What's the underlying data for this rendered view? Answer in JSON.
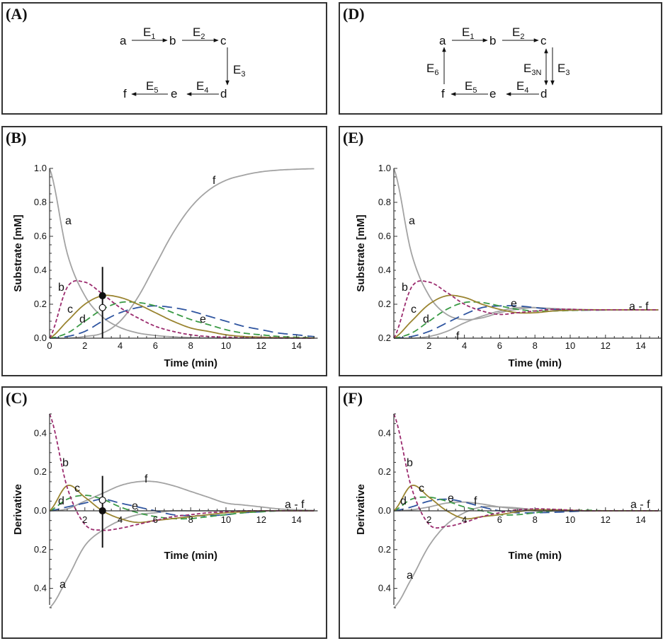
{
  "panels": {
    "A": {
      "label": "(A)",
      "nodes": [
        "a",
        "b",
        "c",
        "d",
        "e",
        "f"
      ],
      "enzymes": [
        {
          "base": "E",
          "sub": "1"
        },
        {
          "base": "E",
          "sub": "2"
        },
        {
          "base": "E",
          "sub": "3"
        },
        {
          "base": "E",
          "sub": "4"
        },
        {
          "base": "E",
          "sub": "5"
        }
      ]
    },
    "D": {
      "label": "(D)",
      "nodes": [
        "a",
        "b",
        "c",
        "d",
        "e",
        "f"
      ],
      "enzymes": [
        {
          "base": "E",
          "sub": "1"
        },
        {
          "base": "E",
          "sub": "2"
        },
        {
          "base": "E",
          "sub": "3"
        },
        {
          "base": "E",
          "sub": "4"
        },
        {
          "base": "E",
          "sub": "5"
        },
        {
          "base": "E",
          "sub": "6"
        },
        {
          "base": "E",
          "sub": "3N"
        }
      ]
    },
    "B": {
      "label": "(B)"
    },
    "C": {
      "label": "(C)"
    },
    "E": {
      "label": "(E)"
    },
    "F": {
      "label": "(F)"
    }
  },
  "series_styles": {
    "a": {
      "color": "#a3a3a3",
      "dash": "solid"
    },
    "b": {
      "color": "#9b2b6e",
      "dash": "short"
    },
    "c": {
      "color": "#9a8430",
      "dash": "solid"
    },
    "d": {
      "color": "#3a9a45",
      "dash": "medium"
    },
    "e": {
      "color": "#2f55a0",
      "dash": "long"
    },
    "f": {
      "color": "#a3a3a3",
      "dash": "solid"
    }
  },
  "chart_data": [
    {
      "id": "B",
      "type": "line",
      "title": "",
      "xlabel": "Time (min)",
      "ylabel": "Substrate [mM]",
      "xlim": [
        0,
        15.2
      ],
      "ylim": [
        0,
        1.0
      ],
      "xticks": [
        "0",
        "2",
        "4",
        "6",
        "8",
        "10",
        "12",
        "14"
      ],
      "yticks": [
        "0.0",
        "0.2",
        "0.4",
        "0.6",
        "0.8",
        "1.0"
      ],
      "grid": false,
      "x": [
        0,
        1,
        2,
        3,
        4,
        5,
        6,
        7,
        8,
        9,
        10,
        11,
        12,
        13,
        14,
        15
      ],
      "series": [
        {
          "name": "a",
          "values": [
            1.0,
            0.5,
            0.25,
            0.125,
            0.063,
            0.031,
            0.016,
            0.008,
            0.004,
            0.002,
            0.001,
            0.0,
            0.0,
            0.0,
            0.0,
            0.0
          ]
        },
        {
          "name": "b",
          "values": [
            0.0,
            0.3,
            0.33,
            0.26,
            0.18,
            0.12,
            0.07,
            0.04,
            0.02,
            0.01,
            0.006,
            0.003,
            0.002,
            0.001,
            0.0,
            0.0
          ]
        },
        {
          "name": "c",
          "values": [
            0.0,
            0.1,
            0.2,
            0.25,
            0.24,
            0.2,
            0.15,
            0.1,
            0.06,
            0.04,
            0.02,
            0.01,
            0.006,
            0.003,
            0.002,
            0.001
          ]
        },
        {
          "name": "d",
          "values": [
            0.0,
            0.03,
            0.1,
            0.17,
            0.21,
            0.21,
            0.19,
            0.15,
            0.11,
            0.08,
            0.05,
            0.03,
            0.02,
            0.01,
            0.006,
            0.003
          ]
        },
        {
          "name": "e",
          "values": [
            0.0,
            0.01,
            0.04,
            0.1,
            0.15,
            0.18,
            0.19,
            0.18,
            0.16,
            0.13,
            0.1,
            0.07,
            0.05,
            0.03,
            0.02,
            0.01
          ]
        },
        {
          "name": "f",
          "values": [
            0.0,
            0.0,
            0.01,
            0.03,
            0.1,
            0.24,
            0.43,
            0.62,
            0.77,
            0.87,
            0.93,
            0.96,
            0.98,
            0.99,
            0.995,
            0.998
          ]
        }
      ],
      "curve_labels": [
        "a",
        "b",
        "c",
        "d",
        "e",
        "f"
      ],
      "marker_line_x": 3,
      "markers": [
        {
          "x": 3,
          "y": 0.25,
          "fill": "filled"
        },
        {
          "x": 3,
          "y": 0.18,
          "fill": "open"
        }
      ]
    },
    {
      "id": "C",
      "type": "line",
      "title": "",
      "xlabel": "Time (min)",
      "ylabel": "Derivative",
      "xlim": [
        0,
        15.2
      ],
      "ylim": [
        -0.5,
        0.5
      ],
      "xticks": [
        "2",
        "4",
        "6",
        "8",
        "10",
        "12",
        "14"
      ],
      "yticks": [
        "0.4",
        "0.2",
        "0.0",
        "0.2",
        "0.4"
      ],
      "grid": false,
      "x": [
        0,
        1,
        2,
        3,
        4,
        5,
        6,
        7,
        8,
        9,
        10,
        11,
        12,
        13,
        14,
        15
      ],
      "series": [
        {
          "name": "a",
          "values": [
            -0.5,
            -0.35,
            -0.18,
            -0.1,
            -0.05,
            -0.02,
            -0.01,
            0.0,
            0.0,
            0.0,
            0.0,
            0.0,
            0.0,
            0.0,
            0.0,
            0.0
          ]
        },
        {
          "name": "b",
          "values": [
            0.5,
            0.12,
            -0.07,
            -0.1,
            -0.09,
            -0.07,
            -0.05,
            -0.03,
            -0.02,
            -0.01,
            -0.005,
            0.0,
            0.0,
            0.0,
            0.0,
            0.0
          ]
        },
        {
          "name": "c",
          "values": [
            0.0,
            0.13,
            0.07,
            0.0,
            -0.04,
            -0.06,
            -0.05,
            -0.04,
            -0.03,
            -0.02,
            -0.01,
            -0.005,
            0.0,
            0.0,
            0.0,
            0.0
          ]
        },
        {
          "name": "d",
          "values": [
            0.0,
            0.06,
            0.08,
            0.06,
            0.02,
            -0.01,
            -0.03,
            -0.04,
            -0.04,
            -0.03,
            -0.02,
            -0.01,
            -0.005,
            0.0,
            0.0,
            0.0
          ]
        },
        {
          "name": "e",
          "values": [
            0.0,
            0.02,
            0.04,
            0.06,
            0.04,
            0.02,
            0.0,
            -0.02,
            -0.025,
            -0.025,
            -0.02,
            -0.01,
            -0.005,
            0.0,
            0.0,
            0.0
          ]
        },
        {
          "name": "f",
          "values": [
            0.0,
            0.01,
            0.05,
            0.09,
            0.13,
            0.15,
            0.15,
            0.13,
            0.1,
            0.07,
            0.04,
            0.03,
            0.02,
            0.01,
            0.005,
            0.002
          ]
        }
      ],
      "curve_labels": [
        "a",
        "b",
        "c",
        "d",
        "e",
        "f",
        "a - f"
      ],
      "marker_line_x": 3,
      "markers": [
        {
          "x": 3,
          "y": 0.055,
          "fill": "open"
        },
        {
          "x": 3,
          "y": 0.0,
          "fill": "filled"
        }
      ]
    },
    {
      "id": "E",
      "type": "line",
      "title": "",
      "xlabel": "Time (min)",
      "ylabel": "Substrate [mM]",
      "xlim": [
        0,
        15.2
      ],
      "ylim": [
        0,
        1.0
      ],
      "xticks": [
        "2",
        "4",
        "6",
        "8",
        "10",
        "12",
        "14"
      ],
      "yticks": [
        "0.2",
        "0.2",
        "0.4",
        "0.6",
        "0.8",
        "1.0"
      ],
      "grid": false,
      "x": [
        0,
        1,
        2,
        3,
        4,
        5,
        6,
        7,
        8,
        9,
        10,
        11,
        12,
        13,
        14,
        15
      ],
      "series": [
        {
          "name": "a",
          "values": [
            1.0,
            0.5,
            0.25,
            0.14,
            0.11,
            0.12,
            0.15,
            0.17,
            0.18,
            0.17,
            0.17,
            0.167,
            0.167,
            0.167,
            0.167,
            0.167
          ]
        },
        {
          "name": "b",
          "values": [
            0.0,
            0.3,
            0.33,
            0.27,
            0.2,
            0.16,
            0.14,
            0.15,
            0.16,
            0.17,
            0.17,
            0.167,
            0.167,
            0.167,
            0.167,
            0.167
          ]
        },
        {
          "name": "c",
          "values": [
            0.0,
            0.1,
            0.2,
            0.25,
            0.24,
            0.2,
            0.17,
            0.15,
            0.15,
            0.16,
            0.165,
            0.167,
            0.167,
            0.167,
            0.167,
            0.167
          ]
        },
        {
          "name": "d",
          "values": [
            0.0,
            0.03,
            0.1,
            0.17,
            0.21,
            0.21,
            0.19,
            0.17,
            0.16,
            0.16,
            0.163,
            0.166,
            0.167,
            0.167,
            0.167,
            0.167
          ]
        },
        {
          "name": "e",
          "values": [
            0.0,
            0.01,
            0.04,
            0.09,
            0.14,
            0.18,
            0.19,
            0.19,
            0.18,
            0.17,
            0.165,
            0.165,
            0.166,
            0.167,
            0.167,
            0.167
          ]
        },
        {
          "name": "f",
          "values": [
            0.0,
            0.0,
            0.01,
            0.04,
            0.09,
            0.13,
            0.16,
            0.18,
            0.18,
            0.175,
            0.17,
            0.168,
            0.167,
            0.167,
            0.167,
            0.167
          ]
        }
      ],
      "curve_labels": [
        "a",
        "b",
        "c",
        "d",
        "e",
        "f",
        "a - f"
      ]
    },
    {
      "id": "F",
      "type": "line",
      "title": "",
      "xlabel": "Time (min)",
      "ylabel": "Derivative",
      "xlim": [
        0,
        15.2
      ],
      "ylim": [
        -0.5,
        0.5
      ],
      "xticks": [
        "2",
        "4",
        "6",
        "8",
        "10",
        "12",
        "14"
      ],
      "yticks": [
        "0.4",
        "0.2",
        "0.0",
        "0.2",
        "0.4"
      ],
      "grid": false,
      "x": [
        0,
        1,
        2,
        3,
        4,
        5,
        6,
        7,
        8,
        9,
        10,
        11,
        12,
        13,
        14,
        15
      ],
      "series": [
        {
          "name": "a",
          "values": [
            -0.5,
            -0.35,
            -0.18,
            -0.07,
            -0.01,
            0.02,
            0.02,
            0.015,
            0.005,
            0.0,
            0.0,
            0.0,
            0.0,
            0.0,
            0.0,
            0.0
          ]
        },
        {
          "name": "b",
          "values": [
            0.5,
            0.12,
            -0.07,
            -0.08,
            -0.06,
            -0.03,
            -0.01,
            0.005,
            0.01,
            0.008,
            0.004,
            0.0,
            0.0,
            0.0,
            0.0,
            0.0
          ]
        },
        {
          "name": "c",
          "values": [
            0.0,
            0.13,
            0.07,
            0.0,
            -0.04,
            -0.03,
            -0.02,
            -0.005,
            0.005,
            0.005,
            0.003,
            0.0,
            0.0,
            0.0,
            0.0,
            0.0
          ]
        },
        {
          "name": "d",
          "values": [
            0.0,
            0.06,
            0.07,
            0.05,
            0.02,
            0.0,
            -0.02,
            -0.02,
            -0.01,
            0.0,
            0.003,
            0.003,
            0.0,
            0.0,
            0.0,
            0.0
          ]
        },
        {
          "name": "e",
          "values": [
            0.0,
            0.02,
            0.05,
            0.06,
            0.045,
            0.02,
            0.0,
            -0.01,
            -0.01,
            -0.008,
            -0.004,
            0.0,
            0.0,
            0.0,
            0.0,
            0.0
          ]
        },
        {
          "name": "f",
          "values": [
            0.0,
            0.005,
            0.02,
            0.04,
            0.045,
            0.035,
            0.02,
            0.01,
            0.0,
            -0.002,
            -0.002,
            -0.001,
            0.0,
            0.0,
            0.0,
            0.0
          ]
        }
      ],
      "curve_labels": [
        "a",
        "b",
        "c",
        "d",
        "e",
        "f",
        "a - f"
      ]
    }
  ]
}
